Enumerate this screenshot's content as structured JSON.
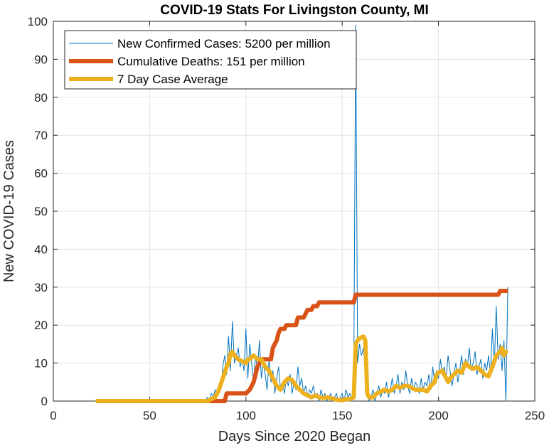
{
  "chart_data": {
    "type": "line",
    "title": "COVID-19 Stats For Livingston County, MI",
    "xlabel": "Days Since 2020 Began",
    "ylabel": "New COVID-19 Cases",
    "xlim": [
      0,
      250
    ],
    "ylim": [
      0,
      100
    ],
    "xticks": [
      0,
      50,
      100,
      150,
      200,
      250
    ],
    "yticks": [
      0,
      10,
      20,
      30,
      40,
      50,
      60,
      70,
      80,
      90,
      100
    ],
    "grid": true,
    "legend_position": "top-left",
    "series": [
      {
        "name": "New Confirmed Cases: 5200 per million",
        "color": "#0072BD",
        "points": [
          [
            22,
            0
          ],
          [
            40,
            0
          ],
          [
            60,
            0
          ],
          [
            79,
            0
          ],
          [
            80,
            1
          ],
          [
            81,
            0
          ],
          [
            82,
            2
          ],
          [
            83,
            1
          ],
          [
            84,
            3
          ],
          [
            85,
            2
          ],
          [
            86,
            4
          ],
          [
            87,
            3
          ],
          [
            88,
            9
          ],
          [
            89,
            12
          ],
          [
            90,
            7
          ],
          [
            91,
            17
          ],
          [
            92,
            8
          ],
          [
            93,
            21
          ],
          [
            94,
            10
          ],
          [
            95,
            12
          ],
          [
            96,
            14
          ],
          [
            97,
            9
          ],
          [
            98,
            11
          ],
          [
            99,
            8
          ],
          [
            100,
            19
          ],
          [
            101,
            6
          ],
          [
            102,
            15
          ],
          [
            103,
            10
          ],
          [
            104,
            5
          ],
          [
            105,
            12
          ],
          [
            106,
            8
          ],
          [
            107,
            16
          ],
          [
            108,
            6
          ],
          [
            109,
            10
          ],
          [
            110,
            7
          ],
          [
            111,
            3
          ],
          [
            112,
            11
          ],
          [
            113,
            5
          ],
          [
            114,
            8
          ],
          [
            115,
            2
          ],
          [
            116,
            6
          ],
          [
            117,
            9
          ],
          [
            118,
            3
          ],
          [
            119,
            5
          ],
          [
            120,
            2
          ],
          [
            121,
            6
          ],
          [
            122,
            4
          ],
          [
            123,
            7
          ],
          [
            124,
            2
          ],
          [
            125,
            5
          ],
          [
            126,
            3
          ],
          [
            127,
            9
          ],
          [
            128,
            4
          ],
          [
            129,
            6
          ],
          [
            130,
            2
          ],
          [
            131,
            4
          ],
          [
            132,
            1
          ],
          [
            133,
            3
          ],
          [
            134,
            2
          ],
          [
            135,
            4
          ],
          [
            136,
            1
          ],
          [
            137,
            2
          ],
          [
            138,
            0
          ],
          [
            139,
            3
          ],
          [
            140,
            1
          ],
          [
            141,
            2
          ],
          [
            142,
            0
          ],
          [
            143,
            1
          ],
          [
            144,
            2
          ],
          [
            145,
            0
          ],
          [
            146,
            1
          ],
          [
            147,
            2
          ],
          [
            148,
            0
          ],
          [
            149,
            1
          ],
          [
            150,
            2
          ],
          [
            151,
            0
          ],
          [
            152,
            3
          ],
          [
            153,
            1
          ],
          [
            154,
            2
          ],
          [
            155,
            0
          ],
          [
            156,
            4
          ],
          [
            157,
            99
          ],
          [
            158,
            10
          ],
          [
            159,
            15
          ],
          [
            160,
            12
          ],
          [
            161,
            14
          ],
          [
            162,
            8
          ],
          [
            163,
            2
          ],
          [
            164,
            0
          ],
          [
            165,
            1
          ],
          [
            166,
            3
          ],
          [
            167,
            0
          ],
          [
            168,
            2
          ],
          [
            169,
            4
          ],
          [
            170,
            1
          ],
          [
            171,
            3
          ],
          [
            172,
            2
          ],
          [
            173,
            5
          ],
          [
            174,
            1
          ],
          [
            175,
            3
          ],
          [
            176,
            6
          ],
          [
            177,
            2
          ],
          [
            178,
            4
          ],
          [
            179,
            7
          ],
          [
            180,
            2
          ],
          [
            181,
            5
          ],
          [
            182,
            3
          ],
          [
            183,
            8
          ],
          [
            184,
            4
          ],
          [
            185,
            2
          ],
          [
            186,
            6
          ],
          [
            187,
            3
          ],
          [
            188,
            5
          ],
          [
            189,
            4
          ],
          [
            190,
            2
          ],
          [
            191,
            6
          ],
          [
            192,
            3
          ],
          [
            193,
            5
          ],
          [
            194,
            4
          ],
          [
            195,
            7
          ],
          [
            196,
            3
          ],
          [
            197,
            9
          ],
          [
            198,
            5
          ],
          [
            199,
            8
          ],
          [
            200,
            6
          ],
          [
            201,
            11
          ],
          [
            202,
            7
          ],
          [
            203,
            9
          ],
          [
            204,
            6
          ],
          [
            205,
            12
          ],
          [
            206,
            8
          ],
          [
            207,
            4
          ],
          [
            208,
            7
          ],
          [
            209,
            10
          ],
          [
            210,
            5
          ],
          [
            211,
            8
          ],
          [
            212,
            12
          ],
          [
            213,
            7
          ],
          [
            214,
            11
          ],
          [
            215,
            9
          ],
          [
            216,
            14
          ],
          [
            217,
            8
          ],
          [
            218,
            10
          ],
          [
            219,
            13
          ],
          [
            220,
            7
          ],
          [
            221,
            9
          ],
          [
            222,
            11
          ],
          [
            223,
            6
          ],
          [
            224,
            10
          ],
          [
            225,
            8
          ],
          [
            226,
            12
          ],
          [
            227,
            7
          ],
          [
            228,
            19
          ],
          [
            229,
            9
          ],
          [
            230,
            25
          ],
          [
            231,
            11
          ],
          [
            232,
            15
          ],
          [
            233,
            8
          ],
          [
            234,
            16
          ],
          [
            235,
            0
          ],
          [
            236,
            30
          ]
        ]
      },
      {
        "name": "Cumulative Deaths: 151 per million",
        "color": "#D95319",
        "points": [
          [
            80,
            0
          ],
          [
            89,
            0
          ],
          [
            90,
            2
          ],
          [
            100,
            2
          ],
          [
            102,
            3
          ],
          [
            104,
            5
          ],
          [
            105,
            7
          ],
          [
            106,
            9
          ],
          [
            107,
            10
          ],
          [
            108,
            11
          ],
          [
            113,
            11
          ],
          [
            114,
            14
          ],
          [
            116,
            16
          ],
          [
            117,
            18
          ],
          [
            118,
            19
          ],
          [
            120,
            19
          ],
          [
            121,
            20
          ],
          [
            126,
            20
          ],
          [
            127,
            22
          ],
          [
            130,
            22
          ],
          [
            131,
            23
          ],
          [
            132,
            24
          ],
          [
            134,
            24
          ],
          [
            135,
            25
          ],
          [
            137,
            25
          ],
          [
            138,
            26
          ],
          [
            156,
            26
          ],
          [
            157,
            28
          ],
          [
            231,
            28
          ],
          [
            232,
            29
          ],
          [
            236,
            29
          ]
        ]
      },
      {
        "name": "7 Day Case Average",
        "color": "#EDB120",
        "points": [
          [
            22,
            0
          ],
          [
            40,
            0
          ],
          [
            60,
            0
          ],
          [
            78,
            0
          ],
          [
            80,
            0
          ],
          [
            82,
            0.5
          ],
          [
            84,
            1
          ],
          [
            86,
            3
          ],
          [
            88,
            6
          ],
          [
            90,
            9
          ],
          [
            91,
            10
          ],
          [
            92,
            12.5
          ],
          [
            93,
            13
          ],
          [
            94,
            12
          ],
          [
            96,
            11
          ],
          [
            98,
            10.5
          ],
          [
            100,
            10
          ],
          [
            101,
            11
          ],
          [
            102,
            11
          ],
          [
            104,
            12
          ],
          [
            106,
            11
          ],
          [
            108,
            11
          ],
          [
            110,
            9
          ],
          [
            112,
            8
          ],
          [
            114,
            6
          ],
          [
            116,
            4
          ],
          [
            118,
            3
          ],
          [
            120,
            5
          ],
          [
            122,
            6
          ],
          [
            124,
            5.5
          ],
          [
            126,
            4
          ],
          [
            128,
            3
          ],
          [
            130,
            2
          ],
          [
            132,
            1.5
          ],
          [
            134,
            1
          ],
          [
            136,
            1.5
          ],
          [
            138,
            1
          ],
          [
            140,
            0.8
          ],
          [
            142,
            1
          ],
          [
            144,
            0.8
          ],
          [
            146,
            0.5
          ],
          [
            148,
            0.3
          ],
          [
            150,
            0.2
          ],
          [
            152,
            0.5
          ],
          [
            154,
            0.5
          ],
          [
            156,
            1
          ],
          [
            157,
            15
          ],
          [
            158,
            16
          ],
          [
            159,
            16.5
          ],
          [
            160,
            16.8
          ],
          [
            161,
            17
          ],
          [
            162,
            16
          ],
          [
            163,
            2
          ],
          [
            164,
            1
          ],
          [
            166,
            1
          ],
          [
            168,
            2
          ],
          [
            170,
            2.5
          ],
          [
            172,
            3
          ],
          [
            174,
            2.5
          ],
          [
            176,
            3
          ],
          [
            178,
            4
          ],
          [
            180,
            3.5
          ],
          [
            182,
            4
          ],
          [
            184,
            4
          ],
          [
            186,
            3.5
          ],
          [
            188,
            3
          ],
          [
            190,
            3
          ],
          [
            192,
            3
          ],
          [
            194,
            2.5
          ],
          [
            196,
            4
          ],
          [
            198,
            5
          ],
          [
            199,
            7
          ],
          [
            200,
            7.5
          ],
          [
            202,
            8
          ],
          [
            204,
            6
          ],
          [
            205,
            5
          ],
          [
            206,
            6
          ],
          [
            208,
            7
          ],
          [
            210,
            8
          ],
          [
            212,
            7.5
          ],
          [
            214,
            10
          ],
          [
            216,
            9
          ],
          [
            218,
            8.5
          ],
          [
            220,
            9
          ],
          [
            222,
            8
          ],
          [
            224,
            7
          ],
          [
            226,
            6.5
          ],
          [
            228,
            9
          ],
          [
            230,
            12
          ],
          [
            232,
            13
          ],
          [
            233,
            14
          ],
          [
            234,
            12
          ],
          [
            235,
            13
          ],
          [
            236,
            13
          ]
        ]
      }
    ]
  }
}
